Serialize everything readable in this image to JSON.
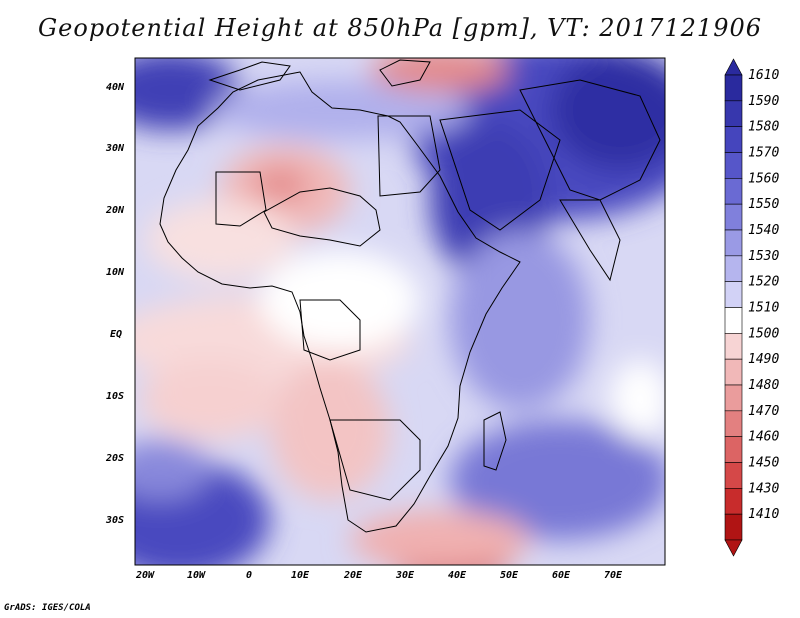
{
  "title": "Geopotential Height at 850hPa [gpm], VT: 2017121906",
  "footer": "GrADS: IGES/COLA",
  "axes": {
    "lon_labels": [
      "20W",
      "10W",
      "0",
      "10E",
      "20E",
      "30E",
      "40E",
      "50E",
      "60E",
      "70E"
    ],
    "lat_labels": [
      "40N",
      "30N",
      "20N",
      "10N",
      "EQ",
      "10S",
      "20S",
      "30S"
    ]
  },
  "colorbar": {
    "labels": [
      "1610",
      "1590",
      "1580",
      "1570",
      "1560",
      "1550",
      "1540",
      "1530",
      "1520",
      "1510",
      "1500",
      "1490",
      "1480",
      "1470",
      "1460",
      "1450",
      "1430",
      "1410"
    ],
    "colors": [
      "#2a2a9e",
      "#3737ad",
      "#4545bd",
      "#5656c9",
      "#6a6ad3",
      "#8080dc",
      "#9a9ae5",
      "#b5b5ee",
      "#d2d2f6",
      "#ffffff",
      "#f7d4d4",
      "#f1b8b8",
      "#ea9c9c",
      "#e38080",
      "#dc6464",
      "#d54848",
      "#c82c2c",
      "#b01414"
    ]
  }
}
